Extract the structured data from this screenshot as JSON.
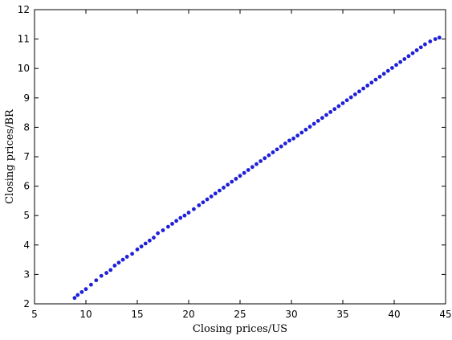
{
  "chart_data": {
    "type": "scatter",
    "title": "",
    "xlabel": "Closing prices/US",
    "ylabel": "Closing prices/BR",
    "xlim": [
      5,
      45
    ],
    "ylim": [
      2,
      12
    ],
    "xticks": [
      5,
      10,
      15,
      20,
      25,
      30,
      35,
      40,
      45
    ],
    "yticks": [
      2,
      3,
      4,
      5,
      6,
      7,
      8,
      9,
      10,
      11,
      12
    ],
    "grid": false,
    "marker_color": "#1f1fd8",
    "series": [
      {
        "x": [
          8.9,
          9.2,
          9.6,
          10.0,
          10.5,
          11.0,
          11.5,
          12.0,
          12.4,
          12.8,
          13.2,
          13.6,
          14.0,
          14.5,
          15.0,
          15.4,
          15.8,
          16.2,
          16.6,
          17.0,
          17.5,
          18.0,
          18.4,
          18.8,
          19.2,
          19.6,
          20.0,
          20.5,
          21.0,
          21.4,
          21.8,
          22.2,
          22.6,
          23.0,
          23.4,
          23.8,
          24.2,
          24.6,
          25.0,
          25.4,
          25.8,
          26.2,
          26.6,
          27.0,
          27.4,
          27.8,
          28.2,
          28.6,
          29.0,
          29.4,
          29.8,
          30.2,
          30.6,
          31.0,
          31.4,
          31.8,
          32.2,
          32.6,
          33.0,
          33.4,
          33.8,
          34.2,
          34.6,
          35.0,
          35.4,
          35.8,
          36.2,
          36.6,
          37.0,
          37.4,
          37.8,
          38.2,
          38.6,
          39.0,
          39.4,
          39.8,
          40.2,
          40.6,
          41.0,
          41.4,
          41.8,
          42.2,
          42.6,
          43.0,
          43.5,
          44.0,
          44.4
        ],
        "y": [
          2.2,
          2.3,
          2.4,
          2.5,
          2.65,
          2.8,
          2.95,
          3.05,
          3.15,
          3.3,
          3.4,
          3.5,
          3.6,
          3.7,
          3.85,
          3.95,
          4.05,
          4.15,
          4.25,
          4.4,
          4.5,
          4.62,
          4.72,
          4.82,
          4.92,
          5.0,
          5.1,
          5.22,
          5.35,
          5.45,
          5.55,
          5.65,
          5.75,
          5.85,
          5.95,
          6.05,
          6.15,
          6.25,
          6.35,
          6.45,
          6.55,
          6.65,
          6.75,
          6.85,
          6.95,
          7.05,
          7.15,
          7.25,
          7.35,
          7.45,
          7.55,
          7.62,
          7.72,
          7.82,
          7.92,
          8.02,
          8.12,
          8.22,
          8.32,
          8.42,
          8.52,
          8.62,
          8.72,
          8.82,
          8.92,
          9.02,
          9.12,
          9.22,
          9.32,
          9.42,
          9.52,
          9.62,
          9.72,
          9.82,
          9.92,
          10.02,
          10.12,
          10.22,
          10.32,
          10.42,
          10.52,
          10.62,
          10.72,
          10.82,
          10.92,
          11.0,
          11.05
        ]
      }
    ]
  }
}
